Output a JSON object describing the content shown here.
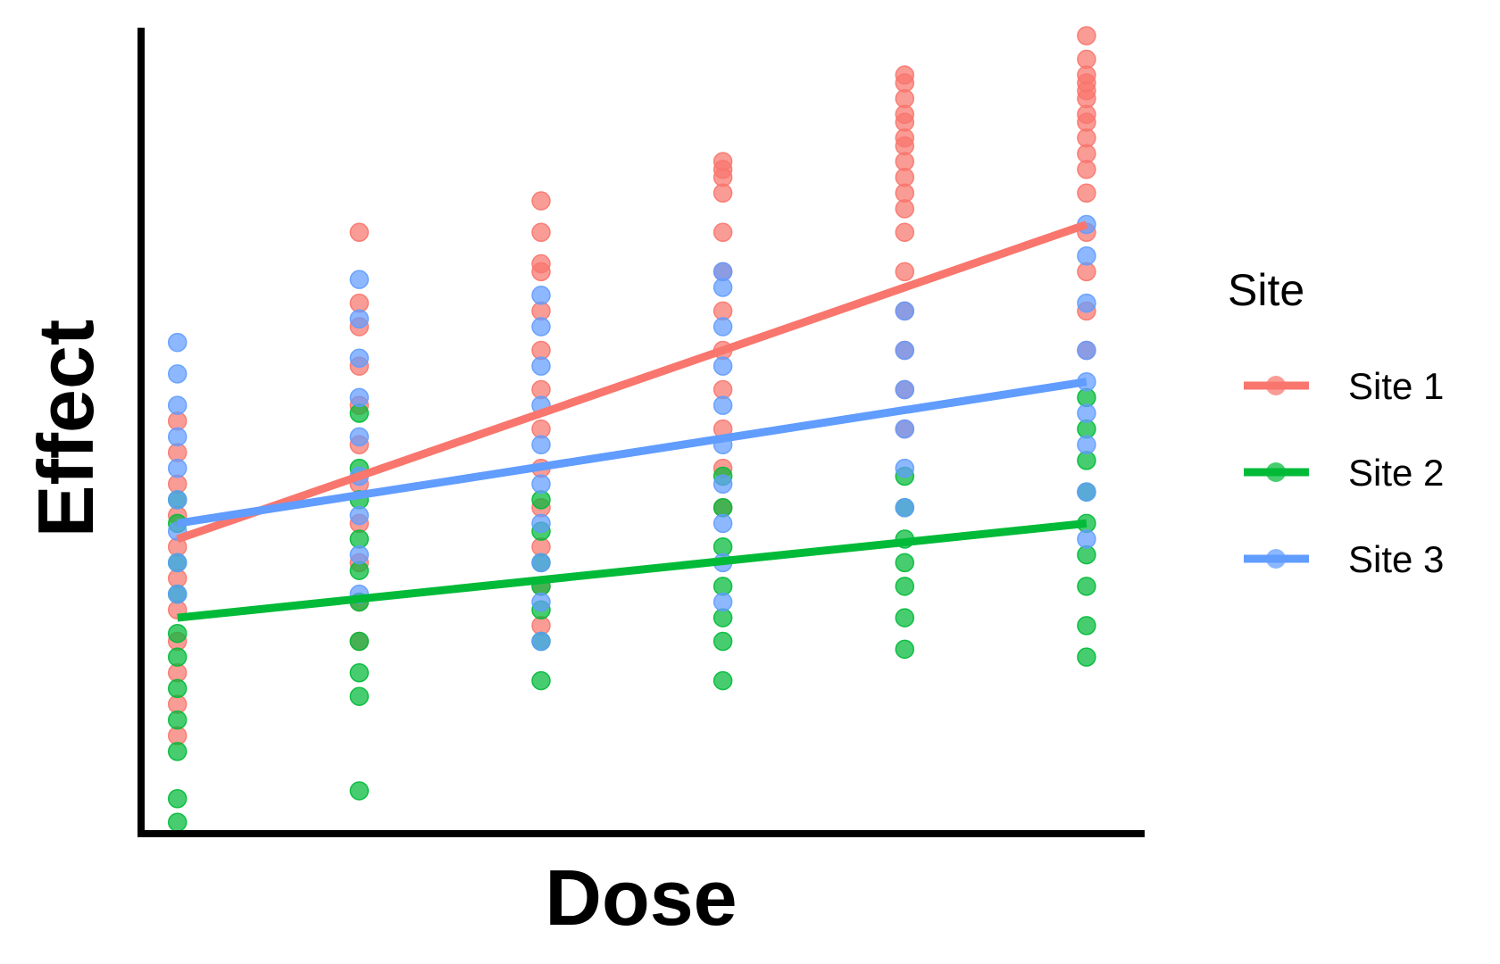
{
  "chart_data": {
    "type": "scatter",
    "xlabel": "Dose",
    "ylabel": "Effect",
    "x_ticks_shown": false,
    "y_ticks_shown": false,
    "grid": false,
    "legend": {
      "title": "Site",
      "placement": "right"
    },
    "x": [
      1,
      2,
      3,
      4,
      5,
      6
    ],
    "xlim": [
      0.8,
      6.3
    ],
    "ylim": [
      -0.1,
      10.0
    ],
    "series": [
      {
        "name": "Site 1",
        "color": "#F8766D",
        "fit": {
          "start": 3.6,
          "end": 7.6
        },
        "points": [
          {
            "x": 1,
            "y": 1.1
          },
          {
            "x": 1,
            "y": 1.5
          },
          {
            "x": 1,
            "y": 1.9
          },
          {
            "x": 1,
            "y": 2.3
          },
          {
            "x": 1,
            "y": 2.7
          },
          {
            "x": 1,
            "y": 3.1
          },
          {
            "x": 1,
            "y": 3.5
          },
          {
            "x": 1,
            "y": 3.9
          },
          {
            "x": 1,
            "y": 4.3
          },
          {
            "x": 1,
            "y": 4.7
          },
          {
            "x": 1,
            "y": 5.1
          },
          {
            "x": 2,
            "y": 2.3
          },
          {
            "x": 2,
            "y": 2.8
          },
          {
            "x": 2,
            "y": 3.3
          },
          {
            "x": 2,
            "y": 3.8
          },
          {
            "x": 2,
            "y": 4.3
          },
          {
            "x": 2,
            "y": 4.8
          },
          {
            "x": 2,
            "y": 5.3
          },
          {
            "x": 2,
            "y": 5.8
          },
          {
            "x": 2,
            "y": 6.3
          },
          {
            "x": 2,
            "y": 6.6
          },
          {
            "x": 2,
            "y": 7.5
          },
          {
            "x": 3,
            "y": 2.5
          },
          {
            "x": 3,
            "y": 3.0
          },
          {
            "x": 3,
            "y": 3.5
          },
          {
            "x": 3,
            "y": 4.0
          },
          {
            "x": 3,
            "y": 4.5
          },
          {
            "x": 3,
            "y": 5.0
          },
          {
            "x": 3,
            "y": 5.5
          },
          {
            "x": 3,
            "y": 6.0
          },
          {
            "x": 3,
            "y": 6.5
          },
          {
            "x": 3,
            "y": 7.0
          },
          {
            "x": 3,
            "y": 7.1
          },
          {
            "x": 3,
            "y": 7.5
          },
          {
            "x": 3,
            "y": 7.9
          },
          {
            "x": 4,
            "y": 4.0
          },
          {
            "x": 4,
            "y": 4.5
          },
          {
            "x": 4,
            "y": 5.0
          },
          {
            "x": 4,
            "y": 5.5
          },
          {
            "x": 4,
            "y": 6.0
          },
          {
            "x": 4,
            "y": 6.5
          },
          {
            "x": 4,
            "y": 7.0
          },
          {
            "x": 4,
            "y": 7.5
          },
          {
            "x": 4,
            "y": 8.0
          },
          {
            "x": 4,
            "y": 8.2
          },
          {
            "x": 4,
            "y": 8.3
          },
          {
            "x": 4,
            "y": 8.4
          },
          {
            "x": 5,
            "y": 5.0
          },
          {
            "x": 5,
            "y": 5.5
          },
          {
            "x": 5,
            "y": 6.0
          },
          {
            "x": 5,
            "y": 6.5
          },
          {
            "x": 5,
            "y": 7.0
          },
          {
            "x": 5,
            "y": 7.5
          },
          {
            "x": 5,
            "y": 7.8
          },
          {
            "x": 5,
            "y": 8.0
          },
          {
            "x": 5,
            "y": 8.2
          },
          {
            "x": 5,
            "y": 8.4
          },
          {
            "x": 5,
            "y": 8.6
          },
          {
            "x": 5,
            "y": 8.7
          },
          {
            "x": 5,
            "y": 8.9
          },
          {
            "x": 5,
            "y": 9.0
          },
          {
            "x": 5,
            "y": 9.2
          },
          {
            "x": 5,
            "y": 9.4
          },
          {
            "x": 5,
            "y": 9.5
          },
          {
            "x": 6,
            "y": 6.0
          },
          {
            "x": 6,
            "y": 6.5
          },
          {
            "x": 6,
            "y": 7.0
          },
          {
            "x": 6,
            "y": 7.5
          },
          {
            "x": 6,
            "y": 8.0
          },
          {
            "x": 6,
            "y": 8.3
          },
          {
            "x": 6,
            "y": 8.5
          },
          {
            "x": 6,
            "y": 8.7
          },
          {
            "x": 6,
            "y": 8.9
          },
          {
            "x": 6,
            "y": 9.0
          },
          {
            "x": 6,
            "y": 9.2
          },
          {
            "x": 6,
            "y": 9.3
          },
          {
            "x": 6,
            "y": 9.4
          },
          {
            "x": 6,
            "y": 9.5
          },
          {
            "x": 6,
            "y": 9.7
          },
          {
            "x": 6,
            "y": 10.0
          }
        ]
      },
      {
        "name": "Site 2",
        "color": "#00BA38",
        "fit": {
          "start": 2.6,
          "end": 3.8
        },
        "points": [
          {
            "x": 1,
            "y": 0.0
          },
          {
            "x": 1,
            "y": 0.3
          },
          {
            "x": 1,
            "y": 0.9
          },
          {
            "x": 1,
            "y": 1.3
          },
          {
            "x": 1,
            "y": 1.7
          },
          {
            "x": 1,
            "y": 2.1
          },
          {
            "x": 1,
            "y": 2.4
          },
          {
            "x": 1,
            "y": 2.9
          },
          {
            "x": 1,
            "y": 3.3
          },
          {
            "x": 1,
            "y": 3.8
          },
          {
            "x": 1,
            "y": 4.1
          },
          {
            "x": 2,
            "y": 0.4
          },
          {
            "x": 2,
            "y": 1.6
          },
          {
            "x": 2,
            "y": 1.9
          },
          {
            "x": 2,
            "y": 2.3
          },
          {
            "x": 2,
            "y": 2.8
          },
          {
            "x": 2,
            "y": 3.2
          },
          {
            "x": 2,
            "y": 3.6
          },
          {
            "x": 2,
            "y": 4.1
          },
          {
            "x": 2,
            "y": 4.5
          },
          {
            "x": 2,
            "y": 5.2
          },
          {
            "x": 3,
            "y": 1.8
          },
          {
            "x": 3,
            "y": 2.3
          },
          {
            "x": 3,
            "y": 2.7
          },
          {
            "x": 3,
            "y": 3.0
          },
          {
            "x": 3,
            "y": 3.3
          },
          {
            "x": 3,
            "y": 3.7
          },
          {
            "x": 3,
            "y": 4.1
          },
          {
            "x": 4,
            "y": 1.8
          },
          {
            "x": 4,
            "y": 2.3
          },
          {
            "x": 4,
            "y": 2.6
          },
          {
            "x": 4,
            "y": 3.0
          },
          {
            "x": 4,
            "y": 3.5
          },
          {
            "x": 4,
            "y": 4.0
          },
          {
            "x": 4,
            "y": 4.4
          },
          {
            "x": 5,
            "y": 2.2
          },
          {
            "x": 5,
            "y": 2.6
          },
          {
            "x": 5,
            "y": 3.0
          },
          {
            "x": 5,
            "y": 3.3
          },
          {
            "x": 5,
            "y": 3.6
          },
          {
            "x": 5,
            "y": 4.0
          },
          {
            "x": 5,
            "y": 4.4
          },
          {
            "x": 6,
            "y": 2.1
          },
          {
            "x": 6,
            "y": 2.5
          },
          {
            "x": 6,
            "y": 3.0
          },
          {
            "x": 6,
            "y": 3.4
          },
          {
            "x": 6,
            "y": 3.8
          },
          {
            "x": 6,
            "y": 4.2
          },
          {
            "x": 6,
            "y": 4.6
          },
          {
            "x": 6,
            "y": 5.0
          },
          {
            "x": 6,
            "y": 5.4
          }
        ]
      },
      {
        "name": "Site 3",
        "color": "#619CFF",
        "fit": {
          "start": 3.8,
          "end": 5.6
        },
        "points": [
          {
            "x": 1,
            "y": 2.9
          },
          {
            "x": 1,
            "y": 3.3
          },
          {
            "x": 1,
            "y": 3.7
          },
          {
            "x": 1,
            "y": 4.1
          },
          {
            "x": 1,
            "y": 4.5
          },
          {
            "x": 1,
            "y": 4.9
          },
          {
            "x": 1,
            "y": 5.3
          },
          {
            "x": 1,
            "y": 5.7
          },
          {
            "x": 1,
            "y": 6.1
          },
          {
            "x": 2,
            "y": 2.9
          },
          {
            "x": 2,
            "y": 3.4
          },
          {
            "x": 2,
            "y": 3.9
          },
          {
            "x": 2,
            "y": 4.4
          },
          {
            "x": 2,
            "y": 4.9
          },
          {
            "x": 2,
            "y": 5.4
          },
          {
            "x": 2,
            "y": 5.9
          },
          {
            "x": 2,
            "y": 6.4
          },
          {
            "x": 2,
            "y": 6.9
          },
          {
            "x": 3,
            "y": 2.3
          },
          {
            "x": 3,
            "y": 2.8
          },
          {
            "x": 3,
            "y": 3.3
          },
          {
            "x": 3,
            "y": 3.8
          },
          {
            "x": 3,
            "y": 4.3
          },
          {
            "x": 3,
            "y": 4.8
          },
          {
            "x": 3,
            "y": 5.3
          },
          {
            "x": 3,
            "y": 5.8
          },
          {
            "x": 3,
            "y": 6.3
          },
          {
            "x": 3,
            "y": 6.7
          },
          {
            "x": 4,
            "y": 2.8
          },
          {
            "x": 4,
            "y": 3.3
          },
          {
            "x": 4,
            "y": 3.8
          },
          {
            "x": 4,
            "y": 4.3
          },
          {
            "x": 4,
            "y": 4.8
          },
          {
            "x": 4,
            "y": 5.3
          },
          {
            "x": 4,
            "y": 5.8
          },
          {
            "x": 4,
            "y": 6.3
          },
          {
            "x": 4,
            "y": 6.8
          },
          {
            "x": 4,
            "y": 7.0
          },
          {
            "x": 5,
            "y": 4.0
          },
          {
            "x": 5,
            "y": 4.5
          },
          {
            "x": 5,
            "y": 5.0
          },
          {
            "x": 5,
            "y": 5.5
          },
          {
            "x": 5,
            "y": 6.0
          },
          {
            "x": 5,
            "y": 6.5
          },
          {
            "x": 6,
            "y": 3.6
          },
          {
            "x": 6,
            "y": 4.2
          },
          {
            "x": 6,
            "y": 4.8
          },
          {
            "x": 6,
            "y": 5.2
          },
          {
            "x": 6,
            "y": 5.6
          },
          {
            "x": 6,
            "y": 6.0
          },
          {
            "x": 6,
            "y": 6.6
          },
          {
            "x": 6,
            "y": 7.2
          },
          {
            "x": 6,
            "y": 7.6
          }
        ]
      }
    ]
  }
}
